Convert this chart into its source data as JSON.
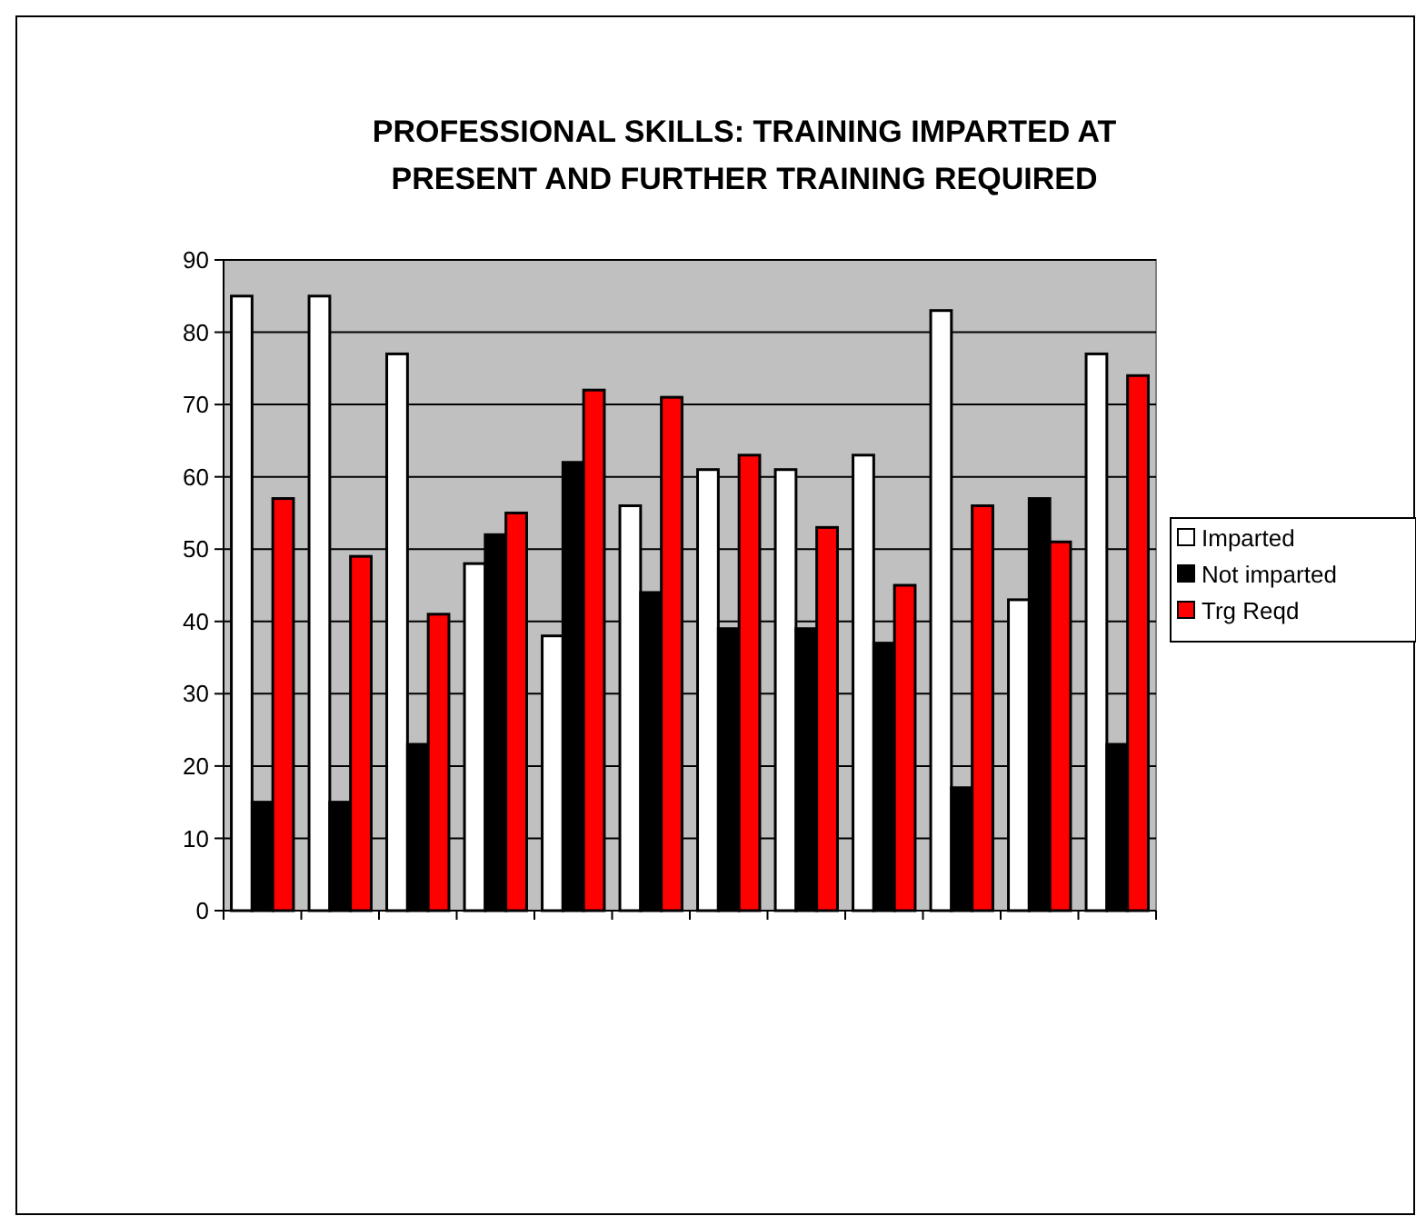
{
  "chart_data": {
    "type": "bar",
    "title": "PROFESSIONAL SKILLS: TRAINING IMPARTED AT PRESENT AND FURTHER TRAINING REQUIRED",
    "categories": [
      null,
      null,
      null,
      null,
      null,
      null,
      null,
      null,
      null,
      null,
      null,
      null
    ],
    "series": [
      {
        "name": "Imparted",
        "color": "#ffffff",
        "values": [
          85,
          85,
          77,
          48,
          38,
          56,
          61,
          61,
          63,
          83,
          43,
          77
        ]
      },
      {
        "name": "Not imparted",
        "color": "#000000",
        "values": [
          15,
          15,
          23,
          52,
          62,
          44,
          39,
          39,
          37,
          17,
          57,
          23
        ]
      },
      {
        "name": "Trg Reqd",
        "color": "#ff0000",
        "values": [
          57,
          49,
          41,
          55,
          72,
          71,
          63,
          53,
          45,
          56,
          51,
          74
        ]
      }
    ],
    "ylim": [
      0,
      90
    ],
    "yticks": [
      0,
      10,
      20,
      30,
      40,
      50,
      60,
      70,
      80,
      90
    ],
    "grid": "y",
    "legend": "right"
  }
}
